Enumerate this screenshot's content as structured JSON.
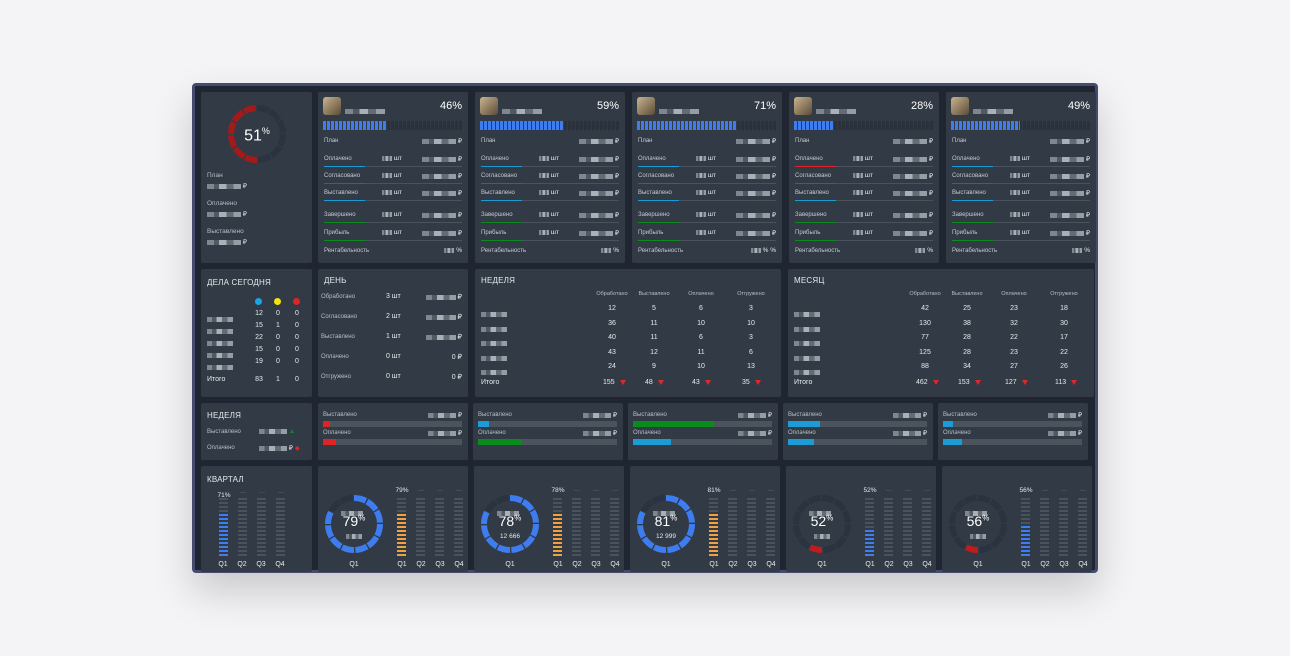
{
  "summary": {
    "percent": "51",
    "pct_sign": "%",
    "labels": [
      "План",
      "Оплачено",
      "Выставлено"
    ],
    "values": [
      "▒▒▒ ▒▒▒ ₽",
      "▒▒▒ ▒▒▒ ₽",
      "▒▒▒ ▒▒▒ ₽"
    ]
  },
  "managers": [
    {
      "percent": "46%",
      "progress": 0.46,
      "rows": {
        "План": "₽",
        "Оплачено": "шт",
        "Согласовано": "шт",
        "Выставлено": "шт",
        "Завершено": "шт",
        "Прибыль": "шт",
        "Рентабельность": "%"
      }
    },
    {
      "percent": "59%",
      "progress": 0.59
    },
    {
      "percent": "71%",
      "progress": 0.71
    },
    {
      "percent": "28%",
      "progress": 0.28
    },
    {
      "percent": "49%",
      "progress": 0.49
    }
  ],
  "manager_row_labels": [
    "План",
    "Оплачено",
    "Согласовано",
    "Выставлено",
    "Завершено",
    "Прибыль",
    "Рентабельность"
  ],
  "manager_units": {
    "sht": "шт",
    "rub": "₽",
    "pct": "%"
  },
  "manager_pct_values": [
    "%",
    "%",
    "% %",
    "%",
    "%"
  ],
  "today": {
    "title": "ДЕЛА СЕГОДНЯ",
    "dot_colors": [
      "#1aa3e8",
      "#f2e312",
      "#e02424"
    ],
    "rows": [
      [
        12,
        0,
        0
      ],
      [
        15,
        1,
        0
      ],
      [
        22,
        0,
        0
      ],
      [
        15,
        0,
        0
      ],
      [
        19,
        0,
        0
      ]
    ],
    "total_label": "Итого",
    "totals": [
      83,
      1,
      0
    ]
  },
  "day": {
    "title": "ДЕНЬ",
    "rows": [
      {
        "label": "Обработано",
        "count": "3 шт",
        "sum": "₽"
      },
      {
        "label": "Согласовано",
        "count": "2 шт",
        "sum": "₽"
      },
      {
        "label": "Выставлено",
        "count": "1 шт",
        "sum": "₽"
      },
      {
        "label": "Оплачено",
        "count": "0 шт",
        "sum": "0 ₽"
      },
      {
        "label": "Отгружено",
        "count": "0 шт",
        "sum": "0 ₽"
      }
    ]
  },
  "week": {
    "title": "НЕДЕЛЯ",
    "columns": [
      "Обработано",
      "Выставлено",
      "Оплачено",
      "Отгружено"
    ],
    "rows": [
      [
        12,
        5,
        6,
        3
      ],
      [
        36,
        11,
        10,
        10
      ],
      [
        40,
        11,
        6,
        3
      ],
      [
        43,
        12,
        11,
        6
      ],
      [
        24,
        9,
        10,
        13
      ]
    ],
    "total_label": "Итого",
    "totals": [
      155,
      48,
      43,
      35
    ]
  },
  "month": {
    "title": "МЕСЯЦ",
    "columns": [
      "Обработано",
      "Выставлено",
      "Оплачено",
      "Отгружено"
    ],
    "rows": [
      [
        42,
        25,
        23,
        18
      ],
      [
        130,
        38,
        32,
        30
      ],
      [
        77,
        28,
        22,
        17
      ],
      [
        125,
        28,
        23,
        22
      ],
      [
        88,
        34,
        27,
        26
      ]
    ],
    "total_label": "Итого",
    "totals": [
      462,
      153,
      127,
      113
    ]
  },
  "week_bars": {
    "title": "НЕДЕЛЯ",
    "labels": [
      "Выставлено",
      "Оплачено"
    ],
    "left_values": [
      "▒▒▒▒ ₽",
      "▒▒▒▒ ₽"
    ],
    "blocks": [
      {
        "invoiced_fill": 0.05,
        "invoiced_color": "#e02424",
        "paid_fill": 0.09,
        "paid_color": "#e02424"
      },
      {
        "invoiced_fill": 0.08,
        "invoiced_color": "#1c9bd6",
        "paid_fill": 0.32,
        "paid_color": "#0a8c1c"
      },
      {
        "invoiced_fill": 0.58,
        "invoiced_color": "#0a8c1c",
        "paid_fill": 0.27,
        "paid_color": "#1c9bd6"
      },
      {
        "invoiced_fill": 0.23,
        "invoiced_color": "#1c9bd6",
        "paid_fill": 0.19,
        "paid_color": "#1c9bd6"
      },
      {
        "invoiced_fill": 0.07,
        "invoiced_color": "#1c9bd6",
        "paid_fill": 0.14,
        "paid_color": "#1c9bd6"
      }
    ],
    "currency": "₽"
  },
  "quarter": {
    "title": "КВАРТАЛ",
    "summary_pct": "71%",
    "q_labels": [
      "Q1",
      "Q2",
      "Q3",
      "Q4"
    ],
    "dots": "···",
    "cards": [
      {
        "percent": "79",
        "top_pct": "79%",
        "subtitle": "",
        "ring_color": "#3e7df0",
        "ring_fill": 0.79,
        "bar_color": "#f0a040",
        "bar_fill": 0.79
      },
      {
        "percent": "78",
        "top_pct": "78%",
        "subtitle": "12 666",
        "ring_color": "#3e7df0",
        "ring_fill": 0.78,
        "bar_color": "#f0a040",
        "bar_fill": 0.78
      },
      {
        "percent": "81",
        "top_pct": "81%",
        "subtitle": "12 999",
        "ring_color": "#3e7df0",
        "ring_fill": 0.81,
        "bar_color": "#f0a040",
        "bar_fill": 0.81
      },
      {
        "percent": "52",
        "top_pct": "52%",
        "subtitle": "",
        "ring_color": "#c01c1c",
        "ring_fill": 0.52,
        "bar_color": "#3e7df0",
        "bar_fill": 0.52
      },
      {
        "percent": "56",
        "top_pct": "56%",
        "subtitle": "",
        "ring_color": "#c01c1c",
        "ring_fill": 0.56,
        "bar_color": "#3e7df0",
        "bar_fill": 0.56
      }
    ],
    "pct_sign": "%"
  }
}
